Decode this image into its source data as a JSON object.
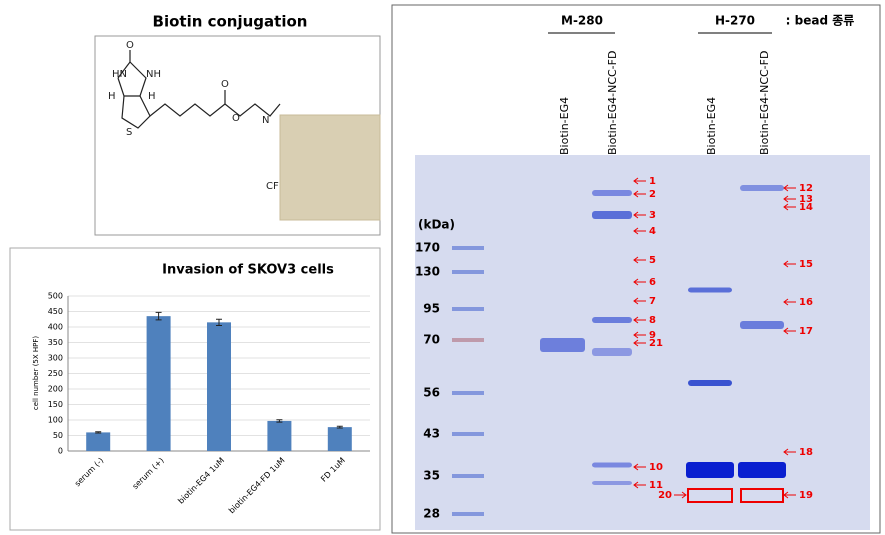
{
  "chart_data": {
    "type": "bar",
    "title": "Invasion of SKOV3 cells",
    "y_label": "cell number (5X HPF)",
    "categories": [
      "serum (-)",
      "serum (+)",
      "biotin-EG4 1uM",
      "biotin-EG4-FD 1uM",
      "FD 1uM"
    ],
    "values": [
      60,
      435,
      415,
      97,
      77
    ],
    "errors": [
      2,
      12,
      10,
      4,
      3
    ],
    "color": "#4f81bd",
    "ylim": [
      0,
      500
    ],
    "yticks": [
      0,
      50,
      100,
      150,
      200,
      250,
      300,
      350,
      400,
      450,
      500
    ],
    "grid": true
  },
  "structure": {
    "title": "Biotin conjugation",
    "atoms": [
      "HN",
      "NH",
      "O",
      "H",
      "H",
      "S",
      "O",
      "O",
      "N",
      "CF"
    ]
  },
  "gel": {
    "groups": [
      "M-280",
      "H-270"
    ],
    "note": ": bead 종류",
    "lanes": [
      "Biotin-EG4",
      "Biotin-EG4-NCC-FD",
      "Biotin-EG4",
      "Biotin-EG4-NCC-FD"
    ],
    "unit": "(kDa)",
    "markers": [
      "170",
      "130",
      "95",
      "70",
      "56",
      "43",
      "35",
      "28"
    ],
    "bands": [
      "1",
      "2",
      "3",
      "4",
      "5",
      "6",
      "7",
      "8",
      "9",
      "21",
      "10",
      "11",
      "12",
      "13",
      "14",
      "15",
      "16",
      "17",
      "18",
      "19",
      "20"
    ]
  }
}
